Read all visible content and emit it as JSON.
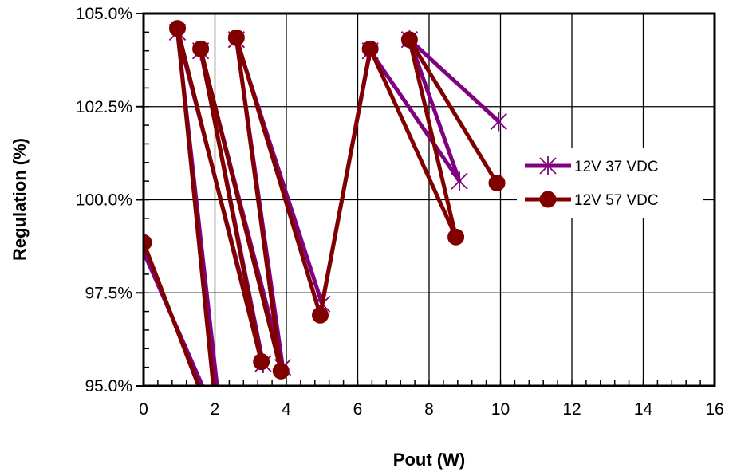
{
  "chart_data": {
    "type": "line",
    "title": "",
    "xlabel": "Pout (W)",
    "ylabel": "Regulation (%)",
    "xlim": [
      0,
      16
    ],
    "ylim": [
      95.0,
      105.0
    ],
    "xticks": [
      0,
      2,
      4,
      6,
      8,
      10,
      12,
      14,
      16
    ],
    "xtick_labels": [
      "0",
      "2",
      "4",
      "6",
      "8",
      "10",
      "12",
      "14",
      "16"
    ],
    "yticks": [
      95.0,
      97.5,
      100.0,
      102.5,
      105.0
    ],
    "ytick_labels": [
      "95.0%",
      "97.5%",
      "100.0%",
      "102.5%",
      "105.0%"
    ],
    "grid": true,
    "legend_position": "right",
    "series": [
      {
        "name": "12V 37 VDC",
        "marker": "asterisk",
        "color": "#800080",
        "x": [
          0,
          2.2,
          0.95,
          3.35,
          1.6,
          3.9,
          2.6,
          5.0,
          6.35,
          8.85,
          7.45,
          9.95
        ],
        "y": [
          98.6,
          93.8,
          104.5,
          95.6,
          104.0,
          95.5,
          104.3,
          97.2,
          104.0,
          100.5,
          104.3,
          102.1
        ]
      },
      {
        "name": "12V 57 VDC",
        "marker": "circle",
        "color": "#800000",
        "x": [
          0,
          2.1,
          0.95,
          3.3,
          1.6,
          3.85,
          2.6,
          4.95,
          6.35,
          8.75,
          7.45,
          9.9
        ],
        "y": [
          98.85,
          93.6,
          104.6,
          95.65,
          104.05,
          95.4,
          104.35,
          96.9,
          104.05,
          99.0,
          104.3,
          100.45
        ]
      }
    ]
  }
}
